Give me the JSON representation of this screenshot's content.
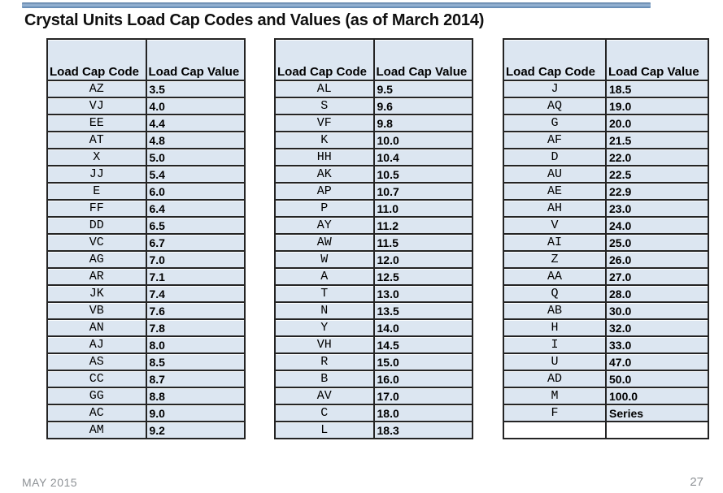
{
  "title": "Crystal Units Load Cap Codes and Values (as of March 2014)",
  "footer": {
    "date": "MAY 2015",
    "page": "27"
  },
  "colors": {
    "top_bar": "#6d94c0",
    "cell_fill": "#dce6f1",
    "table_border": "#242424",
    "footer_text": "#8e9296"
  },
  "tables": [
    {
      "headers": [
        "Load Cap Code",
        "Load Cap Value"
      ],
      "rows": [
        [
          "AZ",
          "3.5"
        ],
        [
          "VJ",
          "4.0"
        ],
        [
          "EE",
          "4.4"
        ],
        [
          "AT",
          "4.8"
        ],
        [
          "X",
          "5.0"
        ],
        [
          "JJ",
          "5.4"
        ],
        [
          "E",
          "6.0"
        ],
        [
          "FF",
          "6.4"
        ],
        [
          "DD",
          "6.5"
        ],
        [
          "VC",
          "6.7"
        ],
        [
          "AG",
          "7.0"
        ],
        [
          "AR",
          "7.1"
        ],
        [
          "JK",
          "7.4"
        ],
        [
          "VB",
          "7.6"
        ],
        [
          "AN",
          "7.8"
        ],
        [
          "AJ",
          "8.0"
        ],
        [
          "AS",
          "8.5"
        ],
        [
          "CC",
          "8.7"
        ],
        [
          "GG",
          "8.8"
        ],
        [
          "AC",
          "9.0"
        ],
        [
          "AM",
          "9.2"
        ]
      ]
    },
    {
      "headers": [
        "Load Cap Code",
        "Load Cap Value"
      ],
      "rows": [
        [
          "AL",
          "9.5"
        ],
        [
          "S",
          "9.6"
        ],
        [
          "VF",
          "9.8"
        ],
        [
          "K",
          "10.0"
        ],
        [
          "HH",
          "10.4"
        ],
        [
          "AK",
          "10.5"
        ],
        [
          "AP",
          "10.7"
        ],
        [
          "P",
          "11.0"
        ],
        [
          "AY",
          "11.2"
        ],
        [
          "AW",
          "11.5"
        ],
        [
          "W",
          "12.0"
        ],
        [
          "A",
          "12.5"
        ],
        [
          "T",
          "13.0"
        ],
        [
          "N",
          "13.5"
        ],
        [
          "Y",
          "14.0"
        ],
        [
          "VH",
          "14.5"
        ],
        [
          "R",
          "15.0"
        ],
        [
          "B",
          "16.0"
        ],
        [
          "AV",
          "17.0"
        ],
        [
          "C",
          "18.0"
        ],
        [
          "L",
          "18.3"
        ]
      ]
    },
    {
      "headers": [
        "Load Cap Code",
        "Load Cap Value"
      ],
      "rows": [
        [
          "J",
          "18.5"
        ],
        [
          "AQ",
          "19.0"
        ],
        [
          "G",
          "20.0"
        ],
        [
          "AF",
          "21.5"
        ],
        [
          "D",
          "22.0"
        ],
        [
          "AU",
          "22.5"
        ],
        [
          "AE",
          "22.9"
        ],
        [
          "AH",
          "23.0"
        ],
        [
          "V",
          "24.0"
        ],
        [
          "AI",
          "25.0"
        ],
        [
          "Z",
          "26.0"
        ],
        [
          "AA",
          "27.0"
        ],
        [
          "Q",
          "28.0"
        ],
        [
          "AB",
          "30.0"
        ],
        [
          "H",
          "32.0"
        ],
        [
          "I",
          "33.0"
        ],
        [
          "U",
          "47.0"
        ],
        [
          "AD",
          "50.0"
        ],
        [
          "M",
          "100.0"
        ],
        [
          "F",
          "Series"
        ],
        [
          "",
          ""
        ]
      ]
    }
  ]
}
